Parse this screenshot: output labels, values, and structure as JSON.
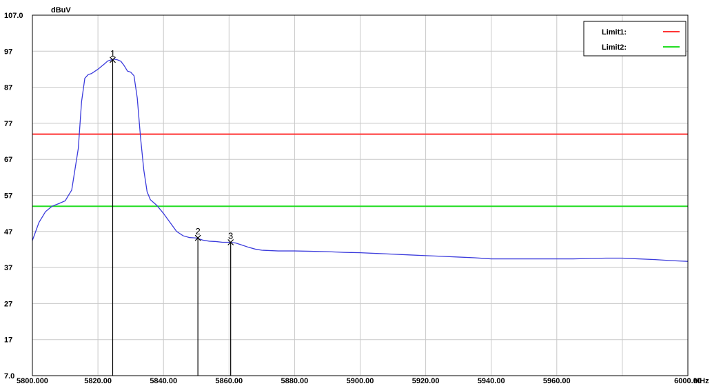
{
  "chart_data": {
    "type": "line",
    "ylabel": "dBuV",
    "xunit": "MHz",
    "ylim": [
      7.0,
      107.0
    ],
    "xlim": [
      5800,
      6000
    ],
    "yticks": [
      {
        "value": 107.0,
        "label": "107.0"
      },
      {
        "value": 97,
        "label": "97"
      },
      {
        "value": 87,
        "label": "87"
      },
      {
        "value": 77,
        "label": "77"
      },
      {
        "value": 67,
        "label": "67"
      },
      {
        "value": 57,
        "label": "57"
      },
      {
        "value": 47,
        "label": "47"
      },
      {
        "value": 37,
        "label": "37"
      },
      {
        "value": 27,
        "label": "27"
      },
      {
        "value": 17,
        "label": "17"
      },
      {
        "value": 7.0,
        "label": "7.0"
      }
    ],
    "xticks": [
      {
        "value": 5800,
        "label": "5800.000"
      },
      {
        "value": 5820,
        "label": "5820.00"
      },
      {
        "value": 5840,
        "label": "5840.00"
      },
      {
        "value": 5860,
        "label": "5860.00"
      },
      {
        "value": 5880,
        "label": "5880.00"
      },
      {
        "value": 5900,
        "label": "5900.00"
      },
      {
        "value": 5920,
        "label": "5920.00"
      },
      {
        "value": 5940,
        "label": "5940.00"
      },
      {
        "value": 5960,
        "label": "5960.00"
      },
      {
        "value": 6000,
        "label": "6000.00"
      }
    ],
    "grid": true,
    "legend_position": "top-right",
    "series": [
      {
        "color": "#3b3bdc",
        "x": [
          5800,
          5802,
          5804,
          5806,
          5808,
          5810,
          5812,
          5814,
          5815,
          5816,
          5817,
          5818,
          5820,
          5822,
          5823,
          5824,
          5825,
          5826,
          5827,
          5828,
          5829,
          5830,
          5831,
          5832,
          5833,
          5834,
          5835,
          5836,
          5838,
          5840,
          5842,
          5844,
          5846,
          5848,
          5850,
          5852,
          5854,
          5856,
          5858,
          5860,
          5862,
          5864,
          5866,
          5868,
          5870,
          5875,
          5880,
          5885,
          5890,
          5895,
          5900,
          5905,
          5910,
          5915,
          5920,
          5925,
          5930,
          5935,
          5940,
          5945,
          5950,
          5955,
          5960,
          5965,
          5970,
          5975,
          5980,
          5985,
          5990,
          5995,
          6000
        ],
        "y": [
          44.5,
          49.5,
          52.5,
          54.0,
          54.7,
          55.5,
          58.5,
          70.0,
          83.0,
          89.5,
          90.5,
          90.8,
          92.0,
          93.5,
          94.3,
          94.6,
          94.8,
          94.6,
          94.2,
          93.0,
          91.5,
          91.2,
          90.2,
          84.0,
          73.0,
          64.0,
          58.0,
          55.8,
          54.2,
          52.0,
          49.5,
          47.0,
          45.8,
          45.3,
          45.2,
          44.6,
          44.3,
          44.2,
          44.0,
          44.0,
          43.8,
          43.2,
          42.6,
          42.1,
          41.8,
          41.6,
          41.6,
          41.5,
          41.4,
          41.2,
          41.1,
          40.9,
          40.7,
          40.5,
          40.3,
          40.1,
          39.9,
          39.7,
          39.4,
          39.4,
          39.4,
          39.4,
          39.4,
          39.4,
          39.5,
          39.6,
          39.6,
          39.4,
          39.2,
          38.9,
          38.7
        ]
      }
    ],
    "limits": [
      {
        "name": "Limit1:",
        "value": 74,
        "color": "#ff3333"
      },
      {
        "name": "Limit2:",
        "value": 54,
        "color": "#22dd22"
      }
    ],
    "markers": [
      {
        "label": "1",
        "x": 5824.5,
        "y": 94.6
      },
      {
        "label": "2",
        "x": 5850.5,
        "y": 45.2
      },
      {
        "label": "3",
        "x": 5860.5,
        "y": 44.0
      }
    ]
  }
}
